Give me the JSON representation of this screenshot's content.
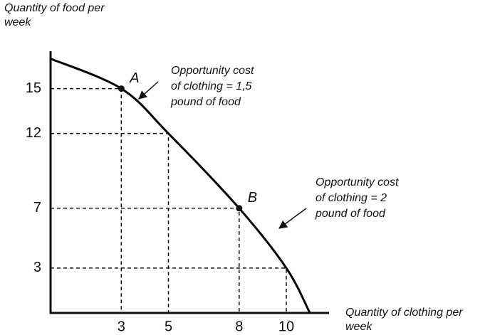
{
  "chart_data": {
    "type": "line",
    "ylabel": [
      "Quantity of food per",
      "week"
    ],
    "xlabel": [
      "Quantity of clothing per",
      "week"
    ],
    "series": [
      {
        "color": "#000000",
        "x": [
          0,
          3,
          5,
          8,
          10,
          11
        ],
        "values": [
          17,
          15,
          12,
          7,
          3,
          0
        ]
      }
    ],
    "xlim": [
      0,
      12.2
    ],
    "ylim": [
      0,
      17.5
    ],
    "xticks": [
      3,
      5,
      8,
      10
    ],
    "yticks": [
      3,
      7,
      12,
      15
    ],
    "points": [
      {
        "label": "A",
        "x": 3,
        "y": 15
      },
      {
        "label": "B",
        "x": 8,
        "y": 7
      }
    ],
    "annotations": [
      {
        "text": [
          "Opportunity cost",
          "of clothing = 1,5",
          "pound of food"
        ]
      },
      {
        "text": [
          "Opportunity cost",
          "of clothing = 2",
          "pound of food"
        ]
      }
    ]
  }
}
